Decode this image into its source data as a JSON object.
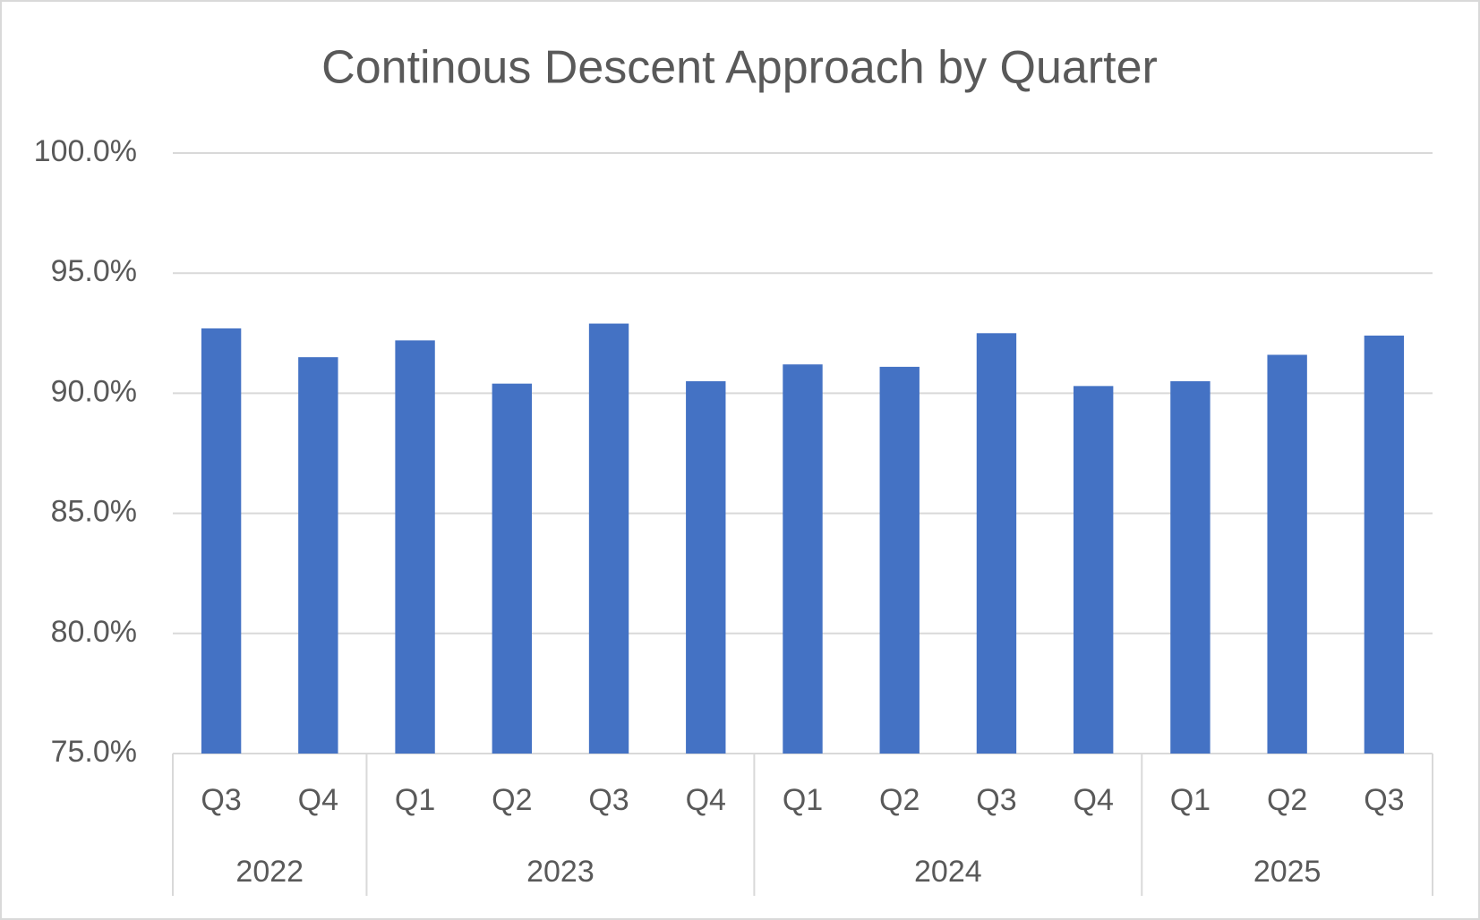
{
  "chart_data": {
    "type": "bar",
    "title": "Continous Descent Approach by Quarter",
    "groups": [
      {
        "name": "2022",
        "categories": [
          "Q3",
          "Q4"
        ],
        "values": [
          92.7,
          91.5
        ]
      },
      {
        "name": "2023",
        "categories": [
          "Q1",
          "Q2",
          "Q3",
          "Q4"
        ],
        "values": [
          92.2,
          90.4,
          92.9,
          90.5
        ]
      },
      {
        "name": "2024",
        "categories": [
          "Q1",
          "Q2",
          "Q3",
          "Q4"
        ],
        "values": [
          91.2,
          91.1,
          92.5,
          90.3
        ]
      },
      {
        "name": "2025",
        "categories": [
          "Q1",
          "Q2",
          "Q3"
        ],
        "values": [
          90.5,
          91.6,
          92.4
        ]
      }
    ],
    "color": "#4472c4",
    "ylim": [
      75,
      100
    ],
    "yticks": [
      {
        "value": 75,
        "label": "75.0%"
      },
      {
        "value": 80,
        "label": "80.0%"
      },
      {
        "value": 85,
        "label": "85.0%"
      },
      {
        "value": 90,
        "label": "90.0%"
      },
      {
        "value": 95,
        "label": "95.0%"
      },
      {
        "value": 100,
        "label": "100.0%"
      }
    ],
    "grid": true
  }
}
